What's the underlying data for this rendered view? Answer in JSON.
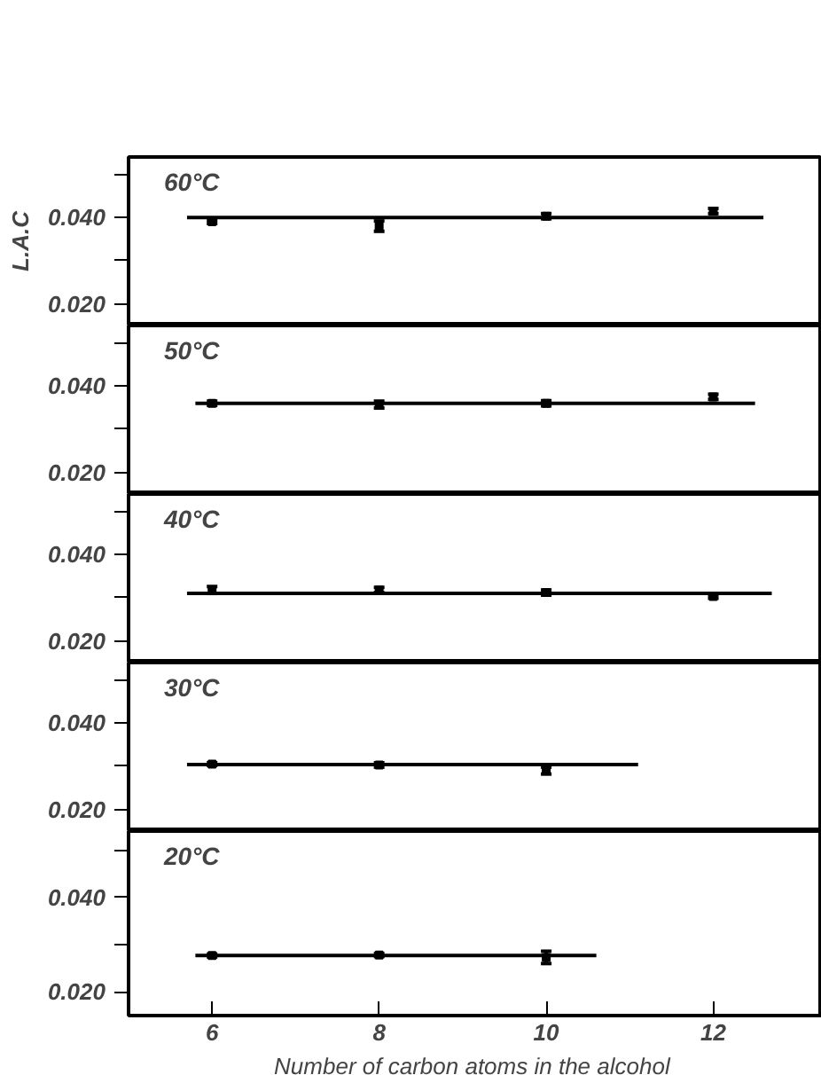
{
  "chart_data": [
    {
      "type": "line",
      "title": "60°C",
      "ylabel": "L.A.C",
      "xlim": [
        5,
        13.3
      ],
      "ylim": [
        0.015,
        0.054
      ],
      "tick_labels": "y",
      "yticks": [
        {
          "value": 0.02,
          "label": "0.020"
        },
        {
          "value": 0.03,
          "label": null
        },
        {
          "value": 0.04,
          "label": "0.040"
        },
        {
          "value": 0.05,
          "label": null
        }
      ],
      "series": [
        {
          "x": [
            5.7,
            12.6
          ],
          "values": [
            0.04,
            0.04
          ],
          "color": "#000000"
        },
        {
          "type": "scatter",
          "marker": "square",
          "x": [
            6,
            8,
            10,
            12
          ],
          "values": [
            0.039,
            0.038,
            0.0403,
            0.0415
          ],
          "errors": [
            0.0004,
            0.0012,
            0.0006,
            0.0006
          ],
          "color": "#000000"
        }
      ]
    },
    {
      "type": "line",
      "title": "50°C",
      "xlim": [
        5,
        13.3
      ],
      "ylim": [
        0.015,
        0.054
      ],
      "tick_labels": "y",
      "yticks": [
        {
          "value": 0.02,
          "label": "0.020"
        },
        {
          "value": 0.03,
          "label": null
        },
        {
          "value": 0.04,
          "label": "0.040"
        },
        {
          "value": 0.05,
          "label": null
        }
      ],
      "series": [
        {
          "x": [
            5.8,
            12.5
          ],
          "values": [
            0.036,
            0.036
          ],
          "color": "#000000"
        },
        {
          "type": "scatter",
          "marker": "square",
          "x": [
            6,
            8,
            10,
            12
          ],
          "values": [
            0.036,
            0.0357,
            0.036,
            0.0375
          ],
          "errors": [
            0.0005,
            0.0008,
            0.0006,
            0.0006
          ],
          "color": "#000000"
        }
      ]
    },
    {
      "type": "line",
      "title": "40°C",
      "xlim": [
        5,
        13.3
      ],
      "ylim": [
        0.015,
        0.054
      ],
      "tick_labels": "y",
      "yticks": [
        {
          "value": 0.02,
          "label": "0.020"
        },
        {
          "value": 0.03,
          "label": null
        },
        {
          "value": 0.04,
          "label": "0.040"
        },
        {
          "value": 0.05,
          "label": null
        }
      ],
      "series": [
        {
          "x": [
            5.7,
            12.7
          ],
          "values": [
            0.031,
            0.031
          ],
          "color": "#000000"
        },
        {
          "type": "scatter",
          "marker": "square",
          "x": [
            6,
            8,
            10,
            12
          ],
          "values": [
            0.0318,
            0.0318,
            0.0312,
            0.0303
          ],
          "errors": [
            0.0008,
            0.0006,
            0.0006,
            0.0004
          ],
          "color": "#000000"
        }
      ]
    },
    {
      "type": "line",
      "title": "30°C",
      "xlim": [
        5,
        13.3
      ],
      "ylim": [
        0.015,
        0.054
      ],
      "tick_labels": "y",
      "yticks": [
        {
          "value": 0.02,
          "label": "0.020"
        },
        {
          "value": 0.03,
          "label": null
        },
        {
          "value": 0.04,
          "label": "0.040"
        },
        {
          "value": 0.05,
          "label": null
        }
      ],
      "series": [
        {
          "x": [
            5.7,
            11.1
          ],
          "values": [
            0.0304,
            0.0304
          ],
          "color": "#000000"
        },
        {
          "type": "scatter",
          "marker": "square",
          "x": [
            6,
            8,
            10
          ],
          "values": [
            0.0305,
            0.0303,
            0.029
          ],
          "errors": [
            0.0003,
            0.0005,
            0.0008
          ],
          "color": "#000000"
        }
      ]
    },
    {
      "type": "line",
      "title": "20°C",
      "xlabel": "Number  of carbon atoms in the alcohol",
      "xlim": [
        5,
        13.3
      ],
      "ylim": [
        0.015,
        0.054
      ],
      "xticks": [
        6,
        8,
        10,
        12
      ],
      "yticks": [
        {
          "value": 0.02,
          "label": "0.020"
        },
        {
          "value": 0.03,
          "label": null
        },
        {
          "value": 0.04,
          "label": "0.040"
        },
        {
          "value": 0.05,
          "label": null
        }
      ],
      "series": [
        {
          "x": [
            5.8,
            10.6
          ],
          "values": [
            0.0277,
            0.0277
          ],
          "color": "#000000"
        },
        {
          "type": "scatter",
          "marker": "square",
          "x": [
            6,
            8,
            10
          ],
          "values": [
            0.0277,
            0.0278,
            0.0273
          ],
          "errors": [
            0.0003,
            0.0003,
            0.0013
          ],
          "color": "#000000"
        }
      ]
    }
  ]
}
